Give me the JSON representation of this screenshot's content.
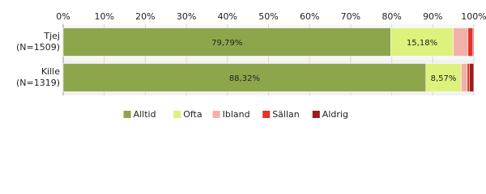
{
  "chart_data": {
    "type": "stacked-bar-horizontal",
    "categories": [
      "Tjej\n(N=1509)",
      "Kille\n(N=1319)"
    ],
    "series": [
      {
        "name": "Alltid",
        "color": "#8ea64b",
        "values": [
          79.79,
          88.32
        ],
        "value_labels": [
          "79,79%",
          "88,32%"
        ]
      },
      {
        "name": "Ofta",
        "color": "#dcf27c",
        "values": [
          15.18,
          8.57
        ],
        "value_labels": [
          "15,18%",
          "8,57%"
        ]
      },
      {
        "name": "Ibland",
        "color": "#f2b1a8",
        "values": [
          3.6,
          1.5
        ]
      },
      {
        "name": "Sällan",
        "color": "#e5302b",
        "values": [
          1.2,
          0.5
        ]
      },
      {
        "name": "Aldrig",
        "color": "#9e1b1b",
        "values": [
          0.2,
          1.1
        ]
      }
    ],
    "xlim": [
      0,
      100
    ],
    "xticks": [
      {
        "value": 0,
        "label": "0%"
      },
      {
        "value": 10,
        "label": "10%"
      },
      {
        "value": 20,
        "label": "20%"
      },
      {
        "value": 30,
        "label": "30%"
      },
      {
        "value": 40,
        "label": "40%"
      },
      {
        "value": 50,
        "label": "50%"
      },
      {
        "value": 60,
        "label": "60%"
      },
      {
        "value": 70,
        "label": "70%"
      },
      {
        "value": 80,
        "label": "80%"
      },
      {
        "value": 90,
        "label": "90%"
      },
      {
        "value": 100,
        "label": "100%"
      }
    ],
    "grid": true,
    "legend": "bottom"
  }
}
